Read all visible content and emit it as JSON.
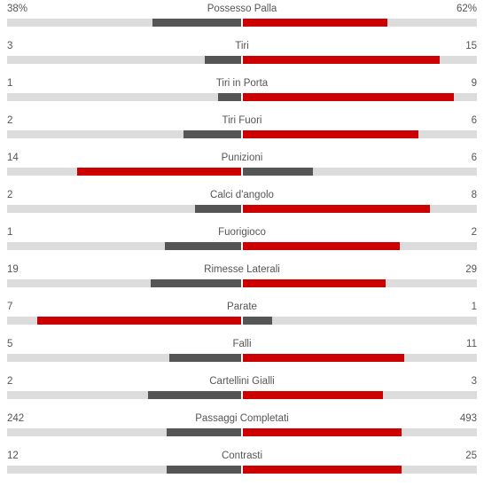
{
  "colors": {
    "leader": "#cc0000",
    "trailer": "#555555",
    "track": "#dcdcdc"
  },
  "stats": [
    {
      "label": "Possesso Palla",
      "home": "38%",
      "away": "62%",
      "home_fill": 0.38,
      "away_fill": 0.62
    },
    {
      "label": "Tiri",
      "home": "3",
      "away": "15",
      "home_fill": 0.16,
      "away_fill": 0.84
    },
    {
      "label": "Tiri in Porta",
      "home": "1",
      "away": "9",
      "home_fill": 0.1,
      "away_fill": 0.9
    },
    {
      "label": "Tiri Fuori",
      "home": "2",
      "away": "6",
      "home_fill": 0.25,
      "away_fill": 0.75
    },
    {
      "label": "Punizioni",
      "home": "14",
      "away": "6",
      "home_fill": 0.7,
      "away_fill": 0.3
    },
    {
      "label": "Calci d'angolo",
      "home": "2",
      "away": "8",
      "home_fill": 0.2,
      "away_fill": 0.8
    },
    {
      "label": "Fuorigioco",
      "home": "1",
      "away": "2",
      "home_fill": 0.33,
      "away_fill": 0.67
    },
    {
      "label": "Rimesse Laterali",
      "home": "19",
      "away": "29",
      "home_fill": 0.39,
      "away_fill": 0.61
    },
    {
      "label": "Parate",
      "home": "7",
      "away": "1",
      "home_fill": 0.87,
      "away_fill": 0.13
    },
    {
      "label": "Falli",
      "home": "5",
      "away": "11",
      "home_fill": 0.31,
      "away_fill": 0.69
    },
    {
      "label": "Cartellini Gialli",
      "home": "2",
      "away": "3",
      "home_fill": 0.4,
      "away_fill": 0.6
    },
    {
      "label": "Passaggi Completati",
      "home": "242",
      "away": "493",
      "home_fill": 0.32,
      "away_fill": 0.68
    },
    {
      "label": "Contrasti",
      "home": "12",
      "away": "25",
      "home_fill": 0.32,
      "away_fill": 0.68
    }
  ]
}
